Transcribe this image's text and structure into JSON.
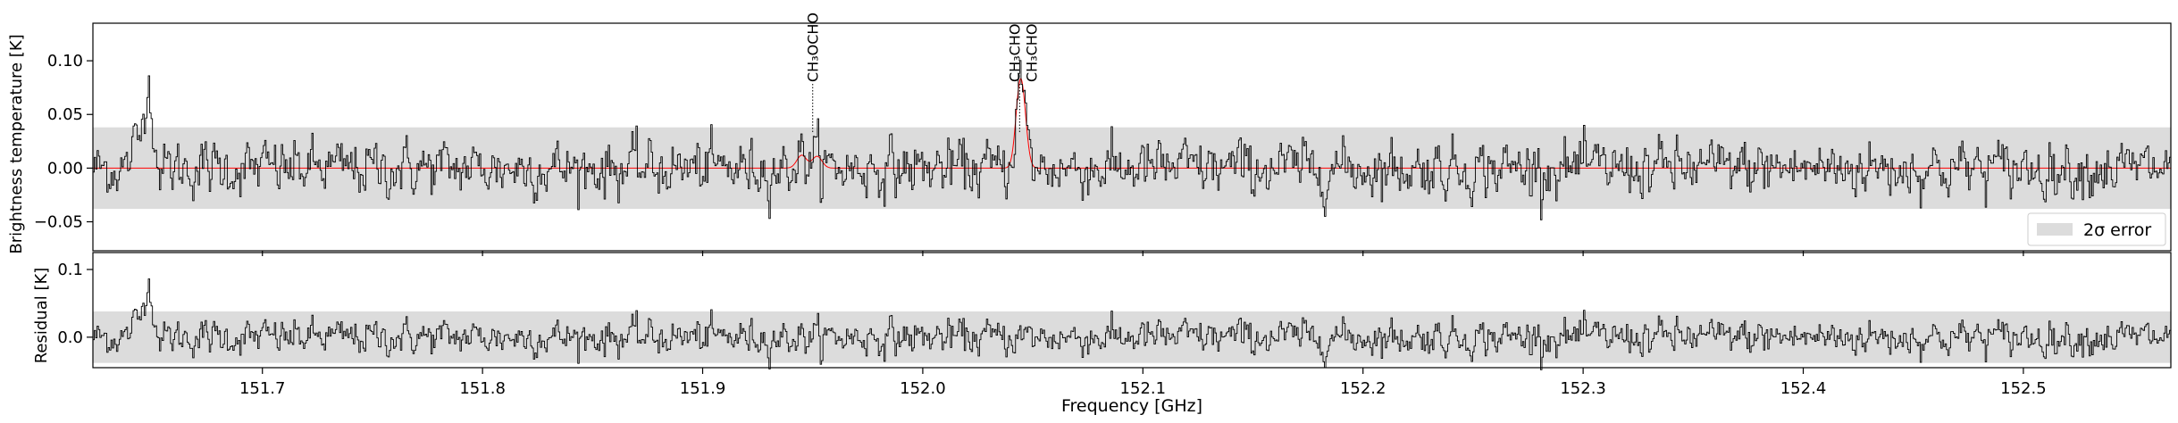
{
  "chart_data": [
    {
      "type": "line",
      "panel": "top",
      "ylabel": "Brightness temperature [K]",
      "xlim": [
        151.623,
        152.567
      ],
      "ylim": [
        -0.077,
        0.135
      ],
      "xticks": [
        151.7,
        151.8,
        151.9,
        152.0,
        152.1,
        152.2,
        152.3,
        152.4,
        152.5
      ],
      "yticks": [
        -0.05,
        0.0,
        0.05,
        0.1
      ],
      "ytick_labels": [
        "−0.05",
        "0.00",
        "0.05",
        "0.10"
      ],
      "error_band": [
        -0.038,
        0.038
      ],
      "legend": {
        "label": "2σ error",
        "placement": "bottom-right"
      },
      "series": [
        {
          "role": "observed spectrum",
          "color": "#000000",
          "style": "steps, noisy, rms ~0.02 K, spike 0.10 K near 151.648 GHz"
        },
        {
          "role": "model",
          "color": "#ff0000",
          "peaks": [
            {
              "x": 151.945,
              "y": 0.012,
              "width": 0.0022
            },
            {
              "x": 151.952,
              "y": 0.011,
              "width": 0.0022
            },
            {
              "x": 152.044,
              "y": 0.066,
              "width": 0.0019
            },
            {
              "x": 152.046,
              "y": 0.028,
              "width": 0.0018
            }
          ]
        }
      ],
      "annotations": [
        {
          "x": 151.95,
          "label": "CH₃OCHO"
        },
        {
          "x": 152.044,
          "label": "CH₃CHO"
        },
        {
          "x": 152.0445,
          "label": "CH₃CHO"
        }
      ]
    },
    {
      "type": "line",
      "panel": "bottom",
      "ylabel": "Residual [K]",
      "xlabel": "Frequency [GHz]",
      "xlim": [
        151.623,
        152.567
      ],
      "ylim": [
        -0.045,
        0.125
      ],
      "xticks": [
        151.7,
        151.8,
        151.9,
        152.0,
        152.1,
        152.2,
        152.3,
        152.4,
        152.5
      ],
      "xtick_labels": [
        "151.7",
        "151.8",
        "151.9",
        "152.0",
        "152.1",
        "152.2",
        "152.3",
        "152.4",
        "152.5"
      ],
      "yticks": [
        0.0,
        0.1
      ],
      "ytick_labels": [
        "0.0",
        "0.1"
      ],
      "error_band": [
        -0.038,
        0.038
      ],
      "series": [
        {
          "role": "residual",
          "color": "#000000"
        }
      ]
    }
  ]
}
